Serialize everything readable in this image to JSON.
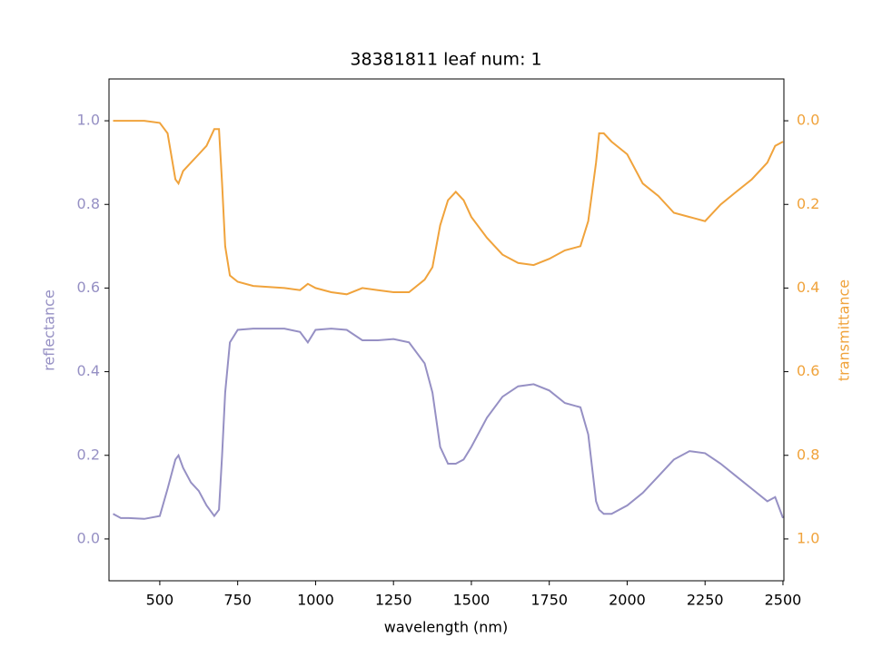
{
  "chart_data": {
    "type": "line",
    "title": "38381811 leaf num: 1",
    "x_label": "wavelength (nm)",
    "y_label": "reflectance",
    "y2_label": "transmittance",
    "x": [
      350,
      375,
      400,
      450,
      500,
      525,
      550,
      560,
      575,
      600,
      625,
      650,
      675,
      690,
      700,
      710,
      725,
      750,
      800,
      900,
      950,
      975,
      1000,
      1050,
      1100,
      1150,
      1200,
      1250,
      1300,
      1350,
      1375,
      1400,
      1425,
      1450,
      1475,
      1500,
      1550,
      1600,
      1650,
      1700,
      1750,
      1800,
      1850,
      1875,
      1900,
      1910,
      1925,
      1950,
      2000,
      2050,
      2100,
      2150,
      2200,
      2250,
      2300,
      2350,
      2400,
      2450,
      2475,
      2500
    ],
    "series": [
      {
        "name": "reflectance",
        "color": "#9690c4",
        "axis": "y",
        "values": [
          0.06,
          0.05,
          0.05,
          0.048,
          0.055,
          0.12,
          0.19,
          0.2,
          0.17,
          0.135,
          0.115,
          0.08,
          0.055,
          0.07,
          0.2,
          0.35,
          0.47,
          0.5,
          0.503,
          0.503,
          0.495,
          0.47,
          0.5,
          0.503,
          0.5,
          0.475,
          0.475,
          0.478,
          0.47,
          0.42,
          0.35,
          0.22,
          0.18,
          0.18,
          0.19,
          0.22,
          0.29,
          0.34,
          0.365,
          0.37,
          0.355,
          0.325,
          0.315,
          0.25,
          0.09,
          0.07,
          0.06,
          0.06,
          0.08,
          0.11,
          0.15,
          0.19,
          0.21,
          0.205,
          0.18,
          0.15,
          0.12,
          0.09,
          0.1,
          0.05
        ]
      },
      {
        "name": "transmittance",
        "color": "#f0a33c",
        "axis": "y2",
        "values": [
          0.0,
          0.0,
          0.0,
          0.0,
          0.005,
          0.03,
          0.14,
          0.15,
          0.12,
          0.1,
          0.08,
          0.06,
          0.02,
          0.02,
          0.15,
          0.3,
          0.37,
          0.385,
          0.395,
          0.4,
          0.405,
          0.39,
          0.4,
          0.41,
          0.415,
          0.4,
          0.405,
          0.41,
          0.41,
          0.38,
          0.35,
          0.25,
          0.19,
          0.17,
          0.19,
          0.23,
          0.28,
          0.32,
          0.34,
          0.345,
          0.33,
          0.31,
          0.3,
          0.24,
          0.1,
          0.03,
          0.03,
          0.05,
          0.08,
          0.15,
          0.18,
          0.22,
          0.23,
          0.24,
          0.2,
          0.17,
          0.14,
          0.1,
          0.06,
          0.05
        ]
      }
    ],
    "xlim": [
      337,
      2503
    ],
    "ylim": [
      -0.1,
      1.1
    ],
    "y2lim": [
      1.1,
      -0.1
    ],
    "xticks": [
      500,
      750,
      1000,
      1250,
      1500,
      1750,
      2000,
      2250,
      2500
    ],
    "yticks": [
      {
        "value": 0,
        "label": "0.0"
      },
      0.2,
      0.4,
      0.6,
      0.8,
      {
        "value": 1,
        "label": "1.0"
      }
    ],
    "y2ticks": [
      {
        "value": 0,
        "label": "0.0"
      },
      0.2,
      0.4,
      0.6,
      0.8,
      {
        "value": 1,
        "label": "1.0"
      }
    ]
  }
}
